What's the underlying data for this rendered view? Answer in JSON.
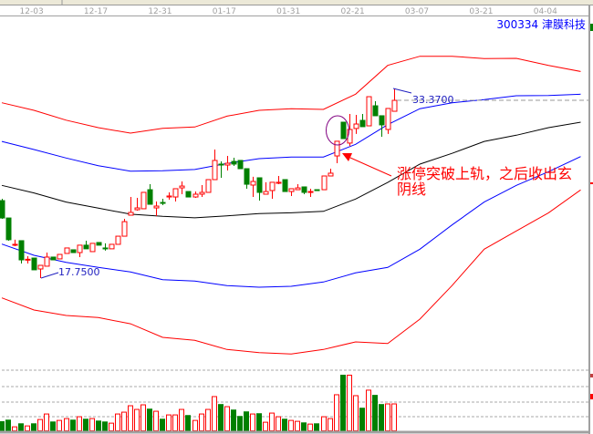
{
  "header": {
    "stock_code": "300334",
    "stock_name": "津膜科技"
  },
  "colors": {
    "up": "#ff0000",
    "down": "#008000",
    "band_outer": "#ff0000",
    "band_inner": "#0000ff",
    "band_mid": "#000000",
    "label": "#2020c0",
    "annotation": "#ff0000",
    "circle": "#800080"
  },
  "chart_data": {
    "type": "candlestick",
    "x_tick_labels": [
      "12-03",
      "12-17",
      "12-31",
      "01-17",
      "01-31",
      "02-21",
      "03-07",
      "03-21",
      "04-04"
    ],
    "high_label": "33.3700",
    "low_label": "17.7500",
    "ohlc": [
      [
        24.13,
        24.28,
        22.63,
        22.7
      ],
      [
        22.7,
        22.7,
        20.83,
        20.91
      ],
      [
        20.46,
        20.91,
        20.38,
        20.53
      ],
      [
        20.83,
        20.83,
        18.95,
        19.25
      ],
      [
        19.25,
        19.55,
        18.95,
        19.3
      ],
      [
        19.4,
        19.4,
        18.43,
        18.43
      ],
      [
        18.5,
        18.8,
        17.75,
        18.8
      ],
      [
        18.73,
        19.85,
        18.73,
        19.48
      ],
      [
        19.48,
        19.48,
        19.25,
        19.25
      ],
      [
        19.33,
        19.7,
        19.33,
        19.7
      ],
      [
        19.78,
        20.23,
        19.78,
        20.23
      ],
      [
        20.08,
        20.08,
        19.85,
        19.85
      ],
      [
        19.85,
        20.46,
        19.48,
        20.46
      ],
      [
        20.46,
        20.83,
        20.16,
        20.16
      ],
      [
        19.93,
        20.61,
        19.93,
        20.61
      ],
      [
        20.68,
        20.68,
        20.46,
        20.46
      ],
      [
        20.23,
        20.61,
        20.01,
        20.16
      ],
      [
        20.16,
        20.53,
        20.16,
        20.53
      ],
      [
        20.53,
        21.2,
        20.53,
        21.2
      ],
      [
        21.2,
        22.63,
        21.2,
        22.4
      ],
      [
        22.93,
        24.43,
        22.93,
        23.16
      ],
      [
        23.38,
        24.36,
        23.31,
        23.53
      ],
      [
        23.46,
        24.81,
        23.46,
        24.81
      ],
      [
        25.03,
        25.48,
        23.83,
        23.83
      ],
      [
        23.53,
        24.06,
        22.86,
        23.68
      ],
      [
        23.98,
        24.28,
        23.76,
        23.91
      ],
      [
        24.43,
        24.81,
        24.21,
        24.51
      ],
      [
        24.43,
        25.11,
        24.06,
        25.11
      ],
      [
        25.18,
        25.71,
        24.66,
        25.33
      ],
      [
        24.88,
        24.88,
        24.43,
        24.43
      ],
      [
        24.43,
        24.88,
        24.36,
        24.66
      ],
      [
        24.66,
        25.41,
        24.43,
        24.81
      ],
      [
        24.81,
        25.86,
        24.81,
        25.86
      ],
      [
        25.86,
        28.34,
        25.86,
        27.44
      ],
      [
        27.14,
        27.36,
        26.01,
        27.06
      ],
      [
        27.06,
        27.81,
        26.61,
        27.21
      ],
      [
        27.36,
        27.66,
        26.99,
        27.14
      ],
      [
        27.44,
        27.44,
        26.76,
        26.76
      ],
      [
        26.76,
        26.76,
        25.11,
        25.48
      ],
      [
        25.41,
        26.09,
        24.43,
        25.71
      ],
      [
        26.01,
        26.01,
        24.13,
        24.81
      ],
      [
        24.66,
        25.64,
        24.66,
        24.88
      ],
      [
        24.96,
        25.64,
        24.28,
        25.64
      ],
      [
        25.56,
        26.16,
        25.48,
        25.64
      ],
      [
        25.86,
        25.86,
        24.88,
        24.88
      ],
      [
        24.88,
        25.11,
        24.51,
        25.11
      ],
      [
        25.03,
        25.48,
        25.03,
        25.18
      ],
      [
        25.26,
        25.26,
        24.66,
        24.81
      ],
      [
        24.81,
        25.11,
        24.43,
        24.88
      ],
      [
        25.03,
        25.03,
        24.96,
        24.96
      ],
      [
        25.03,
        26.16,
        25.03,
        26.16
      ],
      [
        26.16,
        26.76,
        26.16,
        26.39
      ],
      [
        27.81,
        29.02,
        27.21,
        29.02
      ],
      [
        30.59,
        30.59,
        29.24,
        29.24
      ],
      [
        28.87,
        31.27,
        28.64,
        29.99
      ],
      [
        30.07,
        31.19,
        29.62,
        30.44
      ],
      [
        30.74,
        31.27,
        30.22,
        30.22
      ],
      [
        30.29,
        32.69,
        30.29,
        32.69
      ],
      [
        31.94,
        32.32,
        31.12,
        31.12
      ],
      [
        31.12,
        31.12,
        29.39,
        30.37
      ],
      [
        29.99,
        31.72,
        29.62,
        31.72
      ],
      [
        31.49,
        33.37,
        31.49,
        32.39
      ]
    ],
    "volume_relative": [
      30,
      35,
      13,
      23,
      16,
      23,
      37,
      55,
      29,
      34,
      40,
      35,
      46,
      38,
      40,
      32,
      29,
      25,
      55,
      61,
      82,
      70,
      85,
      71,
      64,
      38,
      52,
      52,
      70,
      50,
      34,
      55,
      70,
      112,
      86,
      79,
      68,
      47,
      62,
      55,
      56,
      28,
      58,
      46,
      38,
      34,
      31,
      26,
      22,
      23,
      46,
      40,
      118,
      182,
      182,
      115,
      74,
      133,
      116,
      86,
      88,
      88
    ],
    "volume_up": [
      false,
      false,
      true,
      false,
      true,
      false,
      true,
      true,
      false,
      true,
      true,
      false,
      true,
      false,
      true,
      false,
      false,
      true,
      true,
      true,
      true,
      true,
      true,
      false,
      true,
      false,
      true,
      true,
      true,
      false,
      true,
      true,
      true,
      true,
      false,
      true,
      false,
      false,
      false,
      true,
      false,
      true,
      true,
      true,
      false,
      true,
      true,
      false,
      true,
      false,
      true,
      true,
      true,
      false,
      true,
      true,
      false,
      true,
      false,
      false,
      true,
      true
    ],
    "band_sample_index": [
      0,
      5,
      10,
      15,
      20,
      25,
      30,
      35,
      40,
      45,
      50,
      55,
      60,
      65,
      70,
      75,
      80,
      85,
      90
    ],
    "bands": {
      "outer_upper": [
        32.19,
        31.57,
        30.76,
        30.14,
        29.69,
        30.09,
        30.19,
        31.09,
        31.57,
        31.7,
        31.64,
        32.9,
        35.27,
        36.02,
        36.02,
        35.83,
        35.85,
        35.27,
        34.77
      ],
      "inner_upper": [
        29.01,
        28.34,
        27.64,
        27.01,
        26.56,
        26.59,
        26.69,
        27.19,
        27.59,
        27.72,
        27.72,
        28.77,
        30.39,
        31.7,
        32.19,
        32.45,
        32.77,
        32.79,
        32.9
      ],
      "middle": [
        25.39,
        24.76,
        24.01,
        23.51,
        23.01,
        22.83,
        22.71,
        22.88,
        23.06,
        23.13,
        23.25,
        24.26,
        25.63,
        27.14,
        28.02,
        29.01,
        29.52,
        30.14,
        30.59
      ],
      "inner_lower": [
        20.55,
        19.63,
        19.05,
        18.63,
        18.25,
        17.62,
        17.5,
        17.13,
        17.0,
        17.07,
        17.43,
        18.18,
        18.63,
        20.13,
        22.13,
        24.01,
        25.39,
        26.51,
        27.76
      ],
      "outer_lower": [
        16.12,
        15.12,
        14.67,
        14.5,
        13.99,
        12.87,
        12.62,
        11.87,
        11.61,
        11.49,
        11.87,
        12.49,
        12.36,
        14.37,
        17.13,
        20.13,
        21.63,
        23.13,
        25.01
      ]
    },
    "annotation": "涨停突破上轨，之后收出玄阴线",
    "grid": false
  }
}
